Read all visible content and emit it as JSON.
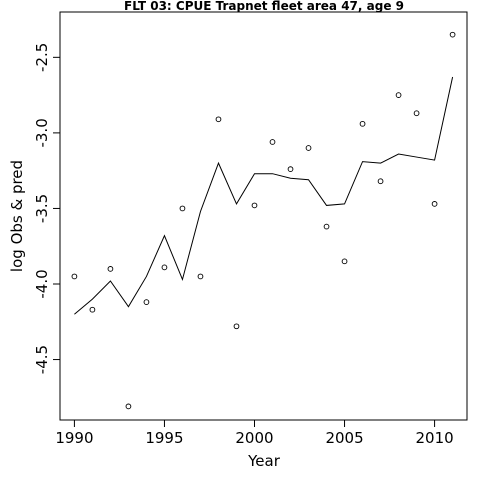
{
  "chart_data": {
    "type": "line",
    "title": "FLT 03: CPUE Trapnet fleet area 47, age 9",
    "xlabel": "Year",
    "ylabel": "log Obs & pred",
    "xlim": [
      1989.2,
      2011.8
    ],
    "ylim": [
      -4.9,
      -2.2
    ],
    "xticks": [
      1990,
      1995,
      2000,
      2005,
      2010
    ],
    "yticks": [
      -4.5,
      -4.0,
      -3.5,
      -3.0,
      -2.5
    ],
    "ytick_labels": [
      "-4.5",
      "-4.0",
      "-3.5",
      "-3.0",
      "-2.5"
    ],
    "grid": false,
    "series": [
      {
        "style": "line",
        "x": [
          1990,
          1991,
          1992,
          1993,
          1994,
          1995,
          1996,
          1997,
          1998,
          1999,
          2000,
          2001,
          2002,
          2003,
          2004,
          2005,
          2006,
          2007,
          2008,
          2009,
          2010,
          2011
        ],
        "values": [
          -4.2,
          -4.1,
          -3.98,
          -4.15,
          -3.95,
          -3.68,
          -3.97,
          -3.52,
          -3.2,
          -3.47,
          -3.27,
          -3.27,
          -3.3,
          -3.31,
          -3.48,
          -3.47,
          -3.19,
          -3.2,
          -3.14,
          -3.16,
          -3.18,
          -2.63
        ]
      },
      {
        "style": "points",
        "x": [
          1990,
          1991,
          1992,
          1993,
          1994,
          1995,
          1996,
          1997,
          1998,
          1999,
          2000,
          2001,
          2002,
          2003,
          2004,
          2005,
          2006,
          2007,
          2008,
          2009,
          2010,
          2011
        ],
        "values": [
          -3.95,
          -4.17,
          -3.9,
          -4.81,
          -4.12,
          -3.89,
          -3.5,
          -3.95,
          -2.91,
          -4.28,
          -3.48,
          -3.06,
          -3.24,
          -3.1,
          -3.62,
          -3.85,
          -2.94,
          -3.32,
          -2.75,
          -2.87,
          -3.47,
          -2.35
        ]
      }
    ]
  }
}
